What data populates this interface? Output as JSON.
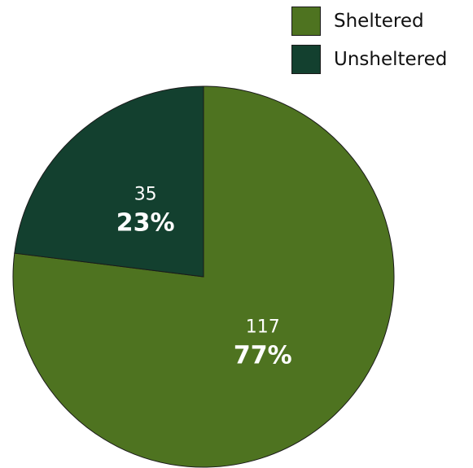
{
  "chart_data": {
    "type": "pie",
    "title": "",
    "legend_position": "top-right",
    "slices": [
      {
        "label": "Sheltered",
        "value": 117,
        "percent_label": "77%",
        "color": "#4e7320"
      },
      {
        "label": "Unsheltered",
        "value": 35,
        "percent_label": "23%",
        "color": "#13402f"
      }
    ]
  }
}
